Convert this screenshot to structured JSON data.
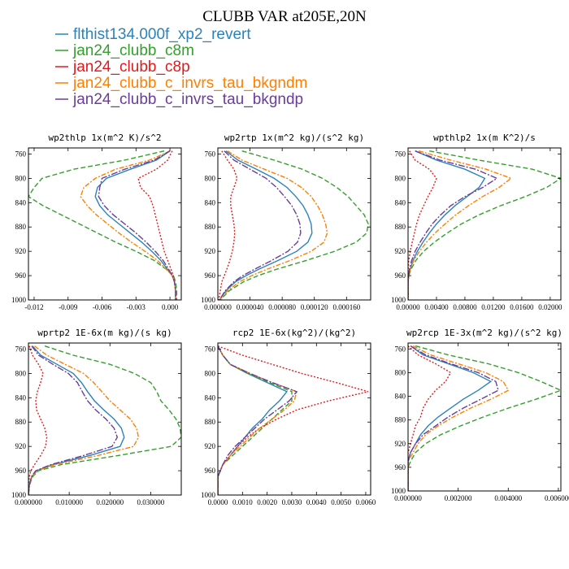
{
  "figure": {
    "title": "CLUBB VAR at205E,20N",
    "legend": [
      {
        "name": "flthist134.000f_xp2_revert",
        "color": "#2b83ba"
      },
      {
        "name": "jan24_clubb_c8m",
        "color": "#33a02c"
      },
      {
        "name": "jan24_clubb_c8p",
        "color": "#e31a1c"
      },
      {
        "name": "jan24_clubb_c_invrs_tau_bkgndm",
        "color": "#ff7f00"
      },
      {
        "name": "jan24_clubb_c_invrs_tau_bkgndp",
        "color": "#6a3d9a"
      }
    ]
  },
  "chart_data": [
    {
      "type": "line",
      "title": "wp2thlp  1x(m^2 K)/s^2",
      "xlim": [
        -0.0125,
        0.001
      ],
      "xticks": [
        "-0.012",
        "-0.009",
        "-0.006",
        "-0.003",
        "0.000"
      ],
      "xtick_values": [
        -0.012,
        -0.009,
        -0.006,
        -0.003,
        0.0
      ],
      "ylim": [
        1000,
        750
      ],
      "yticks": [
        760,
        800,
        840,
        880,
        920,
        960,
        1000
      ],
      "y": [
        755,
        770,
        785,
        800,
        815,
        830,
        845,
        860,
        875,
        890,
        905,
        920,
        935,
        950,
        960,
        970,
        985,
        1000
      ],
      "series": [
        {
          "x": [
            0.0,
            -0.0012,
            -0.0035,
            -0.0056,
            -0.0064,
            -0.0066,
            -0.0062,
            -0.0055,
            -0.0045,
            -0.0035,
            -0.0025,
            -0.0016,
            -0.0008,
            -0.0002,
            0.0002,
            0.0004,
            0.0005,
            0.0005
          ]
        },
        {
          "x": [
            -0.0005,
            -0.004,
            -0.0085,
            -0.0113,
            -0.012,
            -0.0125,
            -0.0112,
            -0.0096,
            -0.008,
            -0.0064,
            -0.0048,
            -0.003,
            -0.0014,
            -0.0003,
            0.0003,
            0.0005,
            0.0006,
            0.0006
          ]
        },
        {
          "x": [
            0.0002,
            -0.0002,
            -0.0012,
            -0.0028,
            -0.0026,
            -0.0018,
            -0.0015,
            -0.0013,
            -0.0011,
            -0.0009,
            -0.0007,
            -0.0005,
            -0.0002,
            0.0001,
            0.0003,
            0.0004,
            0.0005,
            0.0005
          ]
        },
        {
          "x": [
            0.0,
            -0.0018,
            -0.0048,
            -0.0066,
            -0.0076,
            -0.0079,
            -0.0073,
            -0.0065,
            -0.0055,
            -0.0045,
            -0.0034,
            -0.0022,
            -0.0011,
            -0.0003,
            0.0002,
            0.0004,
            0.0005,
            0.0005
          ]
        },
        {
          "x": [
            0.0,
            -0.0014,
            -0.004,
            -0.006,
            -0.0062,
            -0.0063,
            -0.0058,
            -0.005,
            -0.004,
            -0.003,
            -0.0021,
            -0.0013,
            -0.0006,
            -0.0001,
            0.0002,
            0.0004,
            0.0005,
            0.0005
          ]
        }
      ]
    },
    {
      "type": "line",
      "title": "wp2rtp  1x(m^2 kg)/(s^2 kg)",
      "xlim": [
        0.0,
        0.00019
      ],
      "xticks": [
        "0.000000",
        "0.000040",
        "0.000080",
        "0.000120",
        "0.000160"
      ],
      "xtick_values": [
        0.0,
        4e-05,
        8e-05,
        0.00012,
        0.00016
      ],
      "ylim": [
        1000,
        750
      ],
      "yticks": [
        760,
        800,
        840,
        880,
        920,
        960,
        1000
      ],
      "y": [
        755,
        770,
        785,
        800,
        815,
        830,
        845,
        860,
        875,
        890,
        905,
        920,
        935,
        950,
        960,
        970,
        985,
        1000
      ],
      "series": [
        {
          "x": [
            1e-05,
            2.5e-05,
            4.8e-05,
            7e-05,
            8.6e-05,
            9.7e-05,
            0.000106,
            0.000112,
            0.000116,
            0.000117,
            0.000112,
            9.8e-05,
            7.5e-05,
            5e-05,
            3.5e-05,
            2.2e-05,
            1e-05,
            2e-06
          ]
        },
        {
          "x": [
            3e-05,
            7e-05,
            0.000105,
            0.00013,
            0.000148,
            0.000162,
            0.000172,
            0.000182,
            0.000187,
            0.000185,
            0.000172,
            0.000145,
            0.00011,
            7.2e-05,
            5e-05,
            3.2e-05,
            1.4e-05,
            3e-06
          ]
        },
        {
          "x": [
            5e-06,
            1.2e-05,
            2e-05,
            2.4e-05,
            2e-05,
            1.6e-05,
            1.6e-05,
            1.8e-05,
            2e-05,
            2.1e-05,
            2e-05,
            1.8e-05,
            1.5e-05,
            1.1e-05,
            8e-06,
            5e-06,
            3e-06,
            1e-06
          ]
        },
        {
          "x": [
            1.2e-05,
            3e-05,
            5.8e-05,
            8.6e-05,
            0.000104,
            0.000116,
            0.000124,
            0.00013,
            0.000134,
            0.000136,
            0.000132,
            0.000116,
            9e-05,
            6e-05,
            4.2e-05,
            2.7e-05,
            1.2e-05,
            2e-06
          ]
        },
        {
          "x": [
            8e-06,
            2e-05,
            4e-05,
            6e-05,
            7.3e-05,
            8.3e-05,
            9.2e-05,
            9.8e-05,
            0.000102,
            0.000103,
            9.9e-05,
            8.7e-05,
            6.7e-05,
            4.5e-05,
            3.1e-05,
            2e-05,
            9e-06,
            2e-06
          ]
        }
      ]
    },
    {
      "type": "line",
      "title": "wpthlp2  1x(m K^2)/s",
      "xlim": [
        0.0,
        0.0215
      ],
      "xticks": [
        "0.00000",
        "0.00400",
        "0.00800",
        "0.01200",
        "0.01600",
        "0.02000"
      ],
      "xtick_values": [
        0.0,
        0.004,
        0.008,
        0.012,
        0.016,
        0.02
      ],
      "ylim": [
        1000,
        750
      ],
      "yticks": [
        760,
        800,
        840,
        880,
        920,
        960,
        1000
      ],
      "y": [
        755,
        770,
        785,
        800,
        815,
        830,
        845,
        860,
        875,
        890,
        905,
        920,
        935,
        950,
        960,
        970,
        985,
        1000
      ],
      "series": [
        {
          "x": [
            0.001,
            0.004,
            0.008,
            0.0108,
            0.01,
            0.0083,
            0.0066,
            0.0052,
            0.004,
            0.003,
            0.0021,
            0.0013,
            0.0007,
            0.0003,
            0.0001,
            0.0,
            0.0,
            0.0
          ]
        },
        {
          "x": [
            0.003,
            0.01,
            0.0175,
            0.0215,
            0.0195,
            0.0165,
            0.013,
            0.01,
            0.0075,
            0.0055,
            0.0037,
            0.0022,
            0.0011,
            0.0004,
            0.0001,
            0.0,
            0.0,
            0.0
          ]
        },
        {
          "x": [
            0.0002,
            0.001,
            0.003,
            0.004,
            0.0035,
            0.0028,
            0.0022,
            0.0016,
            0.0012,
            0.0009,
            0.0006,
            0.0003,
            0.0001,
            0.0,
            0.0,
            0.0,
            0.0,
            0.0
          ]
        },
        {
          "x": [
            0.0015,
            0.006,
            0.011,
            0.0145,
            0.0128,
            0.0105,
            0.0085,
            0.0067,
            0.0052,
            0.0038,
            0.0026,
            0.0016,
            0.0008,
            0.0003,
            0.0001,
            0.0,
            0.0,
            0.0
          ]
        },
        {
          "x": [
            0.001,
            0.0045,
            0.0095,
            0.0125,
            0.0105,
            0.008,
            0.006,
            0.0046,
            0.0034,
            0.0025,
            0.0017,
            0.001,
            0.0005,
            0.0002,
            0.0001,
            0.0,
            0.0,
            0.0
          ]
        }
      ]
    },
    {
      "type": "line",
      "title": "wprtp2  1E-6x(m kg)/(s kg)",
      "xlim": [
        0.0,
        0.0375
      ],
      "xticks": [
        "0.000000",
        "0.010000",
        "0.020000",
        "0.030000"
      ],
      "xtick_values": [
        0.0,
        0.01,
        0.02,
        0.03
      ],
      "ylim": [
        1000,
        750
      ],
      "yticks": [
        760,
        800,
        840,
        880,
        920,
        960,
        1000
      ],
      "y": [
        755,
        770,
        785,
        800,
        815,
        830,
        845,
        860,
        875,
        890,
        905,
        920,
        935,
        950,
        960,
        970,
        985,
        1000
      ],
      "series": [
        {
          "x": [
            0.001,
            0.003,
            0.007,
            0.011,
            0.013,
            0.0145,
            0.0162,
            0.0185,
            0.021,
            0.0228,
            0.0235,
            0.0225,
            0.015,
            0.006,
            0.002,
            0.0008,
            0.0002,
            0.0
          ]
        },
        {
          "x": [
            0.004,
            0.011,
            0.02,
            0.026,
            0.03,
            0.0315,
            0.0325,
            0.0345,
            0.0362,
            0.0372,
            0.0375,
            0.035,
            0.022,
            0.008,
            0.0025,
            0.001,
            0.0002,
            0.0
          ]
        },
        {
          "x": [
            0.0002,
            0.001,
            0.0025,
            0.0036,
            0.003,
            0.0022,
            0.0018,
            0.002,
            0.003,
            0.004,
            0.0045,
            0.0042,
            0.003,
            0.0015,
            0.0006,
            0.0002,
            0.0,
            0.0
          ]
        },
        {
          "x": [
            0.0015,
            0.0045,
            0.009,
            0.0135,
            0.016,
            0.018,
            0.02,
            0.0225,
            0.025,
            0.0265,
            0.027,
            0.0258,
            0.017,
            0.0065,
            0.0022,
            0.0009,
            0.0002,
            0.0
          ]
        },
        {
          "x": [
            0.0008,
            0.0025,
            0.006,
            0.0098,
            0.012,
            0.0132,
            0.0145,
            0.0165,
            0.019,
            0.021,
            0.0218,
            0.0205,
            0.0135,
            0.0055,
            0.0018,
            0.0007,
            0.0002,
            0.0
          ]
        }
      ]
    },
    {
      "type": "line",
      "title": "rcp2  1E-6x(kg^2)/(kg^2)",
      "xlim": [
        0.0,
        0.0062
      ],
      "xticks": [
        "0.0000",
        "0.0010",
        "0.0020",
        "0.0030",
        "0.0040",
        "0.0050",
        "0.0060"
      ],
      "xtick_values": [
        0.0,
        0.001,
        0.002,
        0.003,
        0.004,
        0.005,
        0.006
      ],
      "ylim": [
        1000,
        750
      ],
      "yticks": [
        760,
        800,
        840,
        880,
        920,
        960,
        1000
      ],
      "y": [
        755,
        770,
        785,
        800,
        815,
        830,
        845,
        860,
        875,
        890,
        905,
        920,
        935,
        950,
        960,
        970,
        985,
        1000
      ],
      "series": [
        {
          "x": [
            0.0,
            0.0002,
            0.0005,
            0.0012,
            0.002,
            0.0028,
            0.0025,
            0.0021,
            0.0018,
            0.0014,
            0.0011,
            0.0008,
            0.0005,
            0.0002,
            0.0001,
            0.0,
            0.0,
            0.0
          ]
        },
        {
          "x": [
            0.0,
            0.0002,
            0.0005,
            0.0012,
            0.0021,
            0.003,
            0.003,
            0.0026,
            0.0022,
            0.0018,
            0.0014,
            0.001,
            0.0006,
            0.0002,
            0.0001,
            0.0,
            0.0,
            0.0
          ]
        },
        {
          "x": [
            0.0,
            0.001,
            0.0022,
            0.0034,
            0.0048,
            0.0061,
            0.0045,
            0.0032,
            0.0024,
            0.0017,
            0.0012,
            0.0008,
            0.0005,
            0.0002,
            0.0001,
            0.0,
            0.0,
            0.0
          ]
        },
        {
          "x": [
            0.0,
            0.0002,
            0.0005,
            0.0013,
            0.0022,
            0.0032,
            0.0031,
            0.0027,
            0.0022,
            0.0017,
            0.0013,
            0.0009,
            0.0005,
            0.0002,
            0.0001,
            0.0,
            0.0,
            0.0
          ]
        },
        {
          "x": [
            0.0,
            0.0002,
            0.0005,
            0.0013,
            0.0022,
            0.0032,
            0.0029,
            0.0024,
            0.0019,
            0.0015,
            0.0011,
            0.0007,
            0.0004,
            0.0002,
            0.0001,
            0.0,
            0.0,
            0.0
          ]
        }
      ]
    },
    {
      "type": "line",
      "title": "wp2rcp  1E-3x(m^2 kg)/(s^2 kg)",
      "xlim": [
        0.0,
        0.0061
      ],
      "xticks": [
        "0.000000",
        "0.002000",
        "0.004000",
        "0.006000"
      ],
      "xtick_values": [
        0.0,
        0.002,
        0.004,
        0.006
      ],
      "ylim": [
        1000,
        750
      ],
      "yticks": [
        760,
        800,
        840,
        880,
        920,
        960,
        1000
      ],
      "y": [
        755,
        770,
        785,
        800,
        815,
        830,
        845,
        860,
        875,
        890,
        905,
        920,
        935,
        950,
        960,
        970,
        985,
        1000
      ],
      "series": [
        {
          "x": [
            0.0001,
            0.0006,
            0.0016,
            0.0026,
            0.0033,
            0.0028,
            0.0022,
            0.0017,
            0.0012,
            0.0008,
            0.0005,
            0.0003,
            0.0001,
            0.0,
            0.0,
            0.0,
            0.0,
            0.0
          ]
        },
        {
          "x": [
            0.0003,
            0.0016,
            0.0032,
            0.0044,
            0.0053,
            0.0061,
            0.0051,
            0.004,
            0.003,
            0.0021,
            0.0013,
            0.0007,
            0.0003,
            0.0001,
            0.0,
            0.0,
            0.0,
            0.0
          ]
        },
        {
          "x": [
            0.0,
            0.0004,
            0.0011,
            0.0017,
            0.0015,
            0.0011,
            0.0008,
            0.0006,
            0.0005,
            0.0003,
            0.0002,
            0.0001,
            0.0,
            0.0,
            0.0,
            0.0,
            0.0,
            0.0
          ]
        },
        {
          "x": [
            0.0002,
            0.0009,
            0.002,
            0.0031,
            0.0038,
            0.004,
            0.0033,
            0.0025,
            0.0018,
            0.0012,
            0.0007,
            0.0004,
            0.0002,
            0.0,
            0.0,
            0.0,
            0.0,
            0.0
          ]
        },
        {
          "x": [
            0.0001,
            0.0007,
            0.0017,
            0.0028,
            0.0035,
            0.0036,
            0.0029,
            0.0022,
            0.0016,
            0.0011,
            0.0006,
            0.0003,
            0.0001,
            0.0,
            0.0,
            0.0,
            0.0,
            0.0
          ]
        }
      ]
    }
  ]
}
